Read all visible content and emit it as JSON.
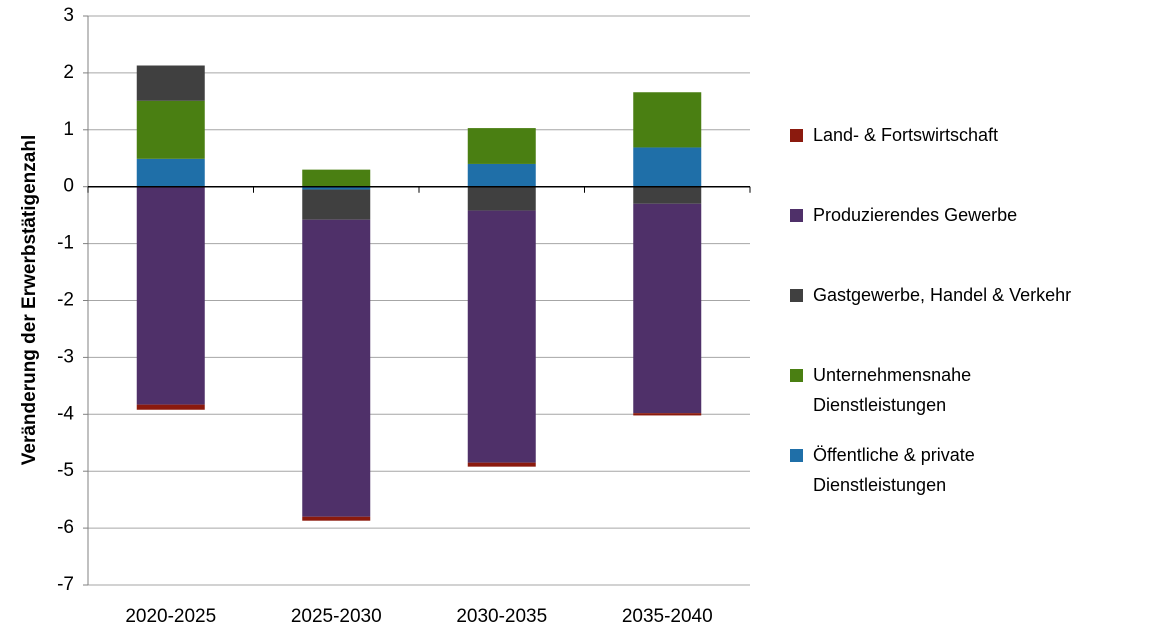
{
  "chart_data": {
    "type": "stacked-bar",
    "y_label": "Veränderung der Erwerbstätigenzahl",
    "categories": [
      "2020-2025",
      "2025-2030",
      "2030-2035",
      "2035-2040"
    ],
    "series": [
      {
        "name": "Land- & Fortswirtschaft",
        "color": "#8b1a0e",
        "values": [
          -0.09,
          -0.07,
          -0.07,
          -0.04
        ]
      },
      {
        "name": "Produzierendes Gewerbe",
        "color": "#4f3069",
        "values": [
          -3.83,
          -5.22,
          -4.43,
          -3.68
        ]
      },
      {
        "name": "Gastgewerbe, Handel & Verkehr",
        "color": "#404040",
        "values": [
          0.62,
          -0.53,
          -0.42,
          -0.3
        ]
      },
      {
        "name": "Unternehmensnahe Dienstleistungen",
        "color": "#4a7f12",
        "values": [
          1.02,
          0.3,
          0.63,
          0.97
        ]
      },
      {
        "name": "Öffentliche & private Dienstleistungen",
        "color": "#1f6fa8",
        "values": [
          0.49,
          -0.05,
          0.4,
          0.69
        ]
      }
    ],
    "ylim": [
      -7,
      3
    ],
    "yticks": [
      -7,
      -6,
      -5,
      -4,
      -3,
      -2,
      -1,
      0,
      1,
      2,
      3
    ],
    "grid": true,
    "legend": "right"
  }
}
